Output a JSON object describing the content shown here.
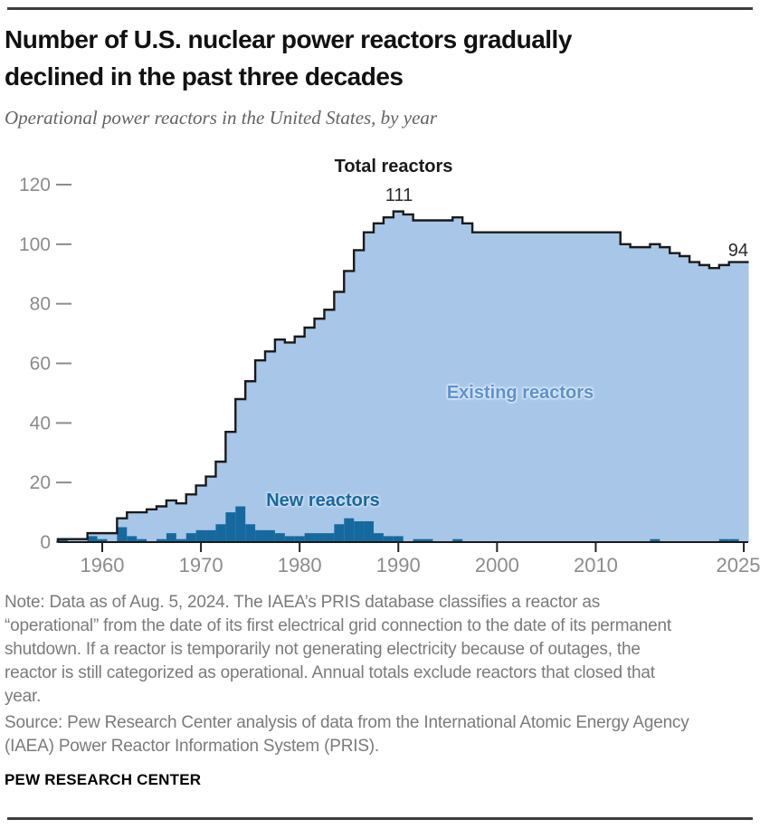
{
  "header": {
    "title": "Number of U.S. nuclear power reactors gradually declined in the past three decades",
    "subtitle": "Operational power reactors in the United States, by year"
  },
  "labels": {
    "total": "Total reactors",
    "peak_value": "111",
    "end_value": "94",
    "existing": "Existing reactors",
    "new": "New reactors"
  },
  "chart_data": {
    "type": "area",
    "title": "Operational power reactors in the United States, by year",
    "xlabel": "",
    "ylabel": "",
    "ylim": [
      0,
      120
    ],
    "yticks": [
      0,
      20,
      40,
      60,
      80,
      100,
      120
    ],
    "xticks": [
      1960,
      1970,
      1980,
      1990,
      2000,
      2010,
      2025
    ],
    "grid": false,
    "legend_position": "inline-annotations",
    "x": [
      1956,
      1957,
      1958,
      1959,
      1960,
      1961,
      1962,
      1963,
      1964,
      1965,
      1966,
      1967,
      1968,
      1969,
      1970,
      1971,
      1972,
      1973,
      1974,
      1975,
      1976,
      1977,
      1978,
      1979,
      1980,
      1981,
      1982,
      1983,
      1984,
      1985,
      1986,
      1987,
      1988,
      1989,
      1990,
      1991,
      1992,
      1993,
      1994,
      1995,
      1996,
      1997,
      1998,
      1999,
      2000,
      2001,
      2002,
      2003,
      2004,
      2005,
      2006,
      2007,
      2008,
      2009,
      2010,
      2011,
      2012,
      2013,
      2014,
      2015,
      2016,
      2017,
      2018,
      2019,
      2020,
      2021,
      2022,
      2023,
      2024,
      2025
    ],
    "series": [
      {
        "name": "Total reactors",
        "style": "step-area",
        "values": [
          1,
          1,
          1,
          3,
          3,
          3,
          8,
          10,
          10,
          11,
          12,
          14,
          13,
          16,
          19,
          22,
          27,
          37,
          48,
          54,
          61,
          64,
          68,
          67,
          69,
          72,
          75,
          78,
          84,
          91,
          98,
          104,
          107,
          109,
          111,
          110,
          108,
          108,
          108,
          108,
          109,
          107,
          104,
          104,
          104,
          104,
          104,
          104,
          104,
          104,
          104,
          104,
          104,
          104,
          104,
          104,
          104,
          100,
          99,
          99,
          100,
          99,
          97,
          96,
          94,
          93,
          92,
          93,
          94,
          94
        ]
      },
      {
        "name": "New reactors",
        "style": "bar",
        "values": [
          1,
          0,
          0,
          2,
          1,
          0,
          5,
          2,
          1,
          0,
          1,
          3,
          1,
          3,
          4,
          4,
          6,
          10,
          12,
          6,
          4,
          4,
          3,
          2,
          2,
          3,
          3,
          3,
          6,
          8,
          7,
          7,
          3,
          2,
          2,
          0,
          1,
          1,
          0,
          0,
          1,
          0,
          0,
          0,
          0,
          0,
          0,
          0,
          0,
          0,
          0,
          0,
          0,
          0,
          0,
          0,
          0,
          0,
          0,
          0,
          1,
          0,
          0,
          0,
          0,
          0,
          0,
          1,
          1,
          0
        ]
      }
    ],
    "annotations": [
      {
        "text": "Total reactors",
        "x": 1989,
        "y": 122
      },
      {
        "text": "111",
        "x": 1990,
        "y": 115
      },
      {
        "text": "94",
        "x": 2025,
        "y": 98
      },
      {
        "text": "Existing reactors",
        "x": 2002,
        "y": 50
      },
      {
        "text": "New reactors",
        "x": 1982,
        "y": 14
      }
    ],
    "colors": {
      "area": "#a8c6e7",
      "outline": "#1a1a1a",
      "bars": "#16699e",
      "axis_text": "#8c8c8c",
      "existing_label": "#5d92cd",
      "new_label": "#17689e"
    }
  },
  "footer": {
    "note_lines": [
      "Note: Data as of Aug. 5, 2024. The IAEA’s PRIS database classifies a reactor as",
      "“operational” from the date of its first electrical grid connection to the date of its permanent",
      "shutdown. If a reactor is temporarily not generating electricity because of outages, the",
      "reactor is still categorized as operational. Annual totals exclude reactors that closed that",
      "year."
    ],
    "source_lines": [
      "Source: Pew Research Center analysis of data from the International Atomic Energy Agency",
      "(IAEA) Power Reactor Information System (PRIS)."
    ],
    "brand": "PEW RESEARCH CENTER"
  }
}
